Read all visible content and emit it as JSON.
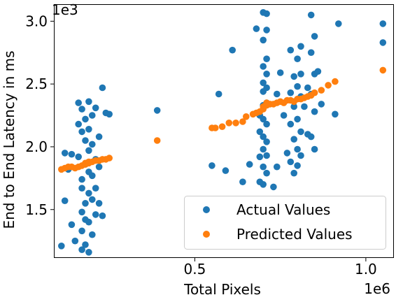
{
  "chart_data": {
    "type": "scatter",
    "xlabel": "Total Pixels",
    "ylabel": "End to End Latency in ms",
    "x_offset_label": "1e6",
    "y_offset_label": "1e3",
    "xlim": [
      0.09,
      1.08
    ],
    "ylim": [
      1.12,
      3.13
    ],
    "x_ticks": [
      0.5,
      1.0
    ],
    "x_tick_labels": [
      "0.5",
      "1.0"
    ],
    "y_ticks": [
      1.5,
      2.0,
      2.5,
      3.0
    ],
    "y_tick_labels": [
      "1.5",
      "2.0",
      "2.5",
      "3.0"
    ],
    "grid": false,
    "legend_position": "bottom-right",
    "series": [
      {
        "name": "Actual Values",
        "color": "#1f77b4",
        "points": [
          [
            0.11,
            1.21
          ],
          [
            0.12,
            1.95
          ],
          [
            0.12,
            1.57
          ],
          [
            0.13,
            1.82
          ],
          [
            0.14,
            1.94
          ],
          [
            0.14,
            1.38
          ],
          [
            0.15,
            1.25
          ],
          [
            0.16,
            2.35
          ],
          [
            0.16,
            2.18
          ],
          [
            0.16,
            1.92
          ],
          [
            0.17,
            2.3
          ],
          [
            0.17,
            2.12
          ],
          [
            0.17,
            1.74
          ],
          [
            0.17,
            1.67
          ],
          [
            0.17,
            1.48
          ],
          [
            0.17,
            1.33
          ],
          [
            0.17,
            1.18
          ],
          [
            0.18,
            2.22
          ],
          [
            0.18,
            2.05
          ],
          [
            0.18,
            1.86
          ],
          [
            0.18,
            1.55
          ],
          [
            0.18,
            1.42
          ],
          [
            0.18,
            1.22
          ],
          [
            0.19,
            2.36
          ],
          [
            0.19,
            2.14
          ],
          [
            0.19,
            1.97
          ],
          [
            0.19,
            1.8
          ],
          [
            0.19,
            1.63
          ],
          [
            0.19,
            1.4
          ],
          [
            0.19,
            1.16
          ],
          [
            0.2,
            2.25
          ],
          [
            0.2,
            2.02
          ],
          [
            0.2,
            1.77
          ],
          [
            0.2,
            1.58
          ],
          [
            0.2,
            1.3
          ],
          [
            0.21,
            2.31
          ],
          [
            0.21,
            1.9
          ],
          [
            0.21,
            1.67
          ],
          [
            0.21,
            1.46
          ],
          [
            0.22,
            2.08
          ],
          [
            0.22,
            1.84
          ],
          [
            0.22,
            1.55
          ],
          [
            0.23,
            2.47
          ],
          [
            0.23,
            1.45
          ],
          [
            0.24,
            2.27
          ],
          [
            0.25,
            2.26
          ],
          [
            0.39,
            2.29
          ],
          [
            0.55,
            1.85
          ],
          [
            0.57,
            2.42
          ],
          [
            0.59,
            1.81
          ],
          [
            0.61,
            2.77
          ],
          [
            0.64,
            1.72
          ],
          [
            0.66,
            1.86
          ],
          [
            0.68,
            2.94
          ],
          [
            0.69,
            2.25
          ],
          [
            0.69,
            2.12
          ],
          [
            0.69,
            1.92
          ],
          [
            0.69,
            1.72
          ],
          [
            0.7,
            3.07
          ],
          [
            0.7,
            2.85
          ],
          [
            0.7,
            2.64
          ],
          [
            0.7,
            2.51
          ],
          [
            0.7,
            2.44
          ],
          [
            0.7,
            2.33
          ],
          [
            0.7,
            2.22
          ],
          [
            0.7,
            2.08
          ],
          [
            0.7,
            1.98
          ],
          [
            0.7,
            1.84
          ],
          [
            0.7,
            1.7
          ],
          [
            0.71,
            3.06
          ],
          [
            0.71,
            2.93
          ],
          [
            0.71,
            2.7
          ],
          [
            0.71,
            2.58
          ],
          [
            0.71,
            2.47
          ],
          [
            0.71,
            2.35
          ],
          [
            0.71,
            2.18
          ],
          [
            0.71,
            2.04
          ],
          [
            0.71,
            1.93
          ],
          [
            0.71,
            1.79
          ],
          [
            0.73,
            1.68
          ],
          [
            0.74,
            2.42
          ],
          [
            0.74,
            1.84
          ],
          [
            0.75,
            2.59
          ],
          [
            0.76,
            2.25
          ],
          [
            0.77,
            1.95
          ],
          [
            0.78,
            2.77
          ],
          [
            0.78,
            2.43
          ],
          [
            0.78,
            2.18
          ],
          [
            0.78,
            1.88
          ],
          [
            0.79,
            2.56
          ],
          [
            0.79,
            2.32
          ],
          [
            0.79,
            2.06
          ],
          [
            0.79,
            1.79
          ],
          [
            0.8,
            2.7
          ],
          [
            0.8,
            2.48
          ],
          [
            0.8,
            2.22
          ],
          [
            0.8,
            1.98
          ],
          [
            0.8,
            1.85
          ],
          [
            0.81,
            2.8
          ],
          [
            0.81,
            2.58
          ],
          [
            0.81,
            2.4
          ],
          [
            0.81,
            2.12
          ],
          [
            0.81,
            1.93
          ],
          [
            0.82,
            2.32
          ],
          [
            0.83,
            2.47
          ],
          [
            0.83,
            2.1
          ],
          [
            0.84,
            3.05
          ],
          [
            0.84,
            2.75
          ],
          [
            0.84,
            2.42
          ],
          [
            0.84,
            2.08
          ],
          [
            0.85,
            2.88
          ],
          [
            0.85,
            2.58
          ],
          [
            0.85,
            2.28
          ],
          [
            0.85,
            1.98
          ],
          [
            0.86,
            2.6
          ],
          [
            0.87,
            2.34
          ],
          [
            0.91,
            2.26
          ],
          [
            0.92,
            2.98
          ],
          [
            1.05,
            2.98
          ],
          [
            1.05,
            2.83
          ]
        ]
      },
      {
        "name": "Predicted Values",
        "color": "#ff7f0e",
        "points": [
          [
            0.11,
            1.82
          ],
          [
            0.12,
            1.83
          ],
          [
            0.13,
            1.84
          ],
          [
            0.14,
            1.84
          ],
          [
            0.15,
            1.83
          ],
          [
            0.16,
            1.84
          ],
          [
            0.17,
            1.85
          ],
          [
            0.18,
            1.86
          ],
          [
            0.18,
            1.87
          ],
          [
            0.19,
            1.87
          ],
          [
            0.19,
            1.88
          ],
          [
            0.2,
            1.88
          ],
          [
            0.21,
            1.89
          ],
          [
            0.22,
            1.89
          ],
          [
            0.23,
            1.9
          ],
          [
            0.24,
            1.9
          ],
          [
            0.25,
            1.91
          ],
          [
            0.39,
            2.05
          ],
          [
            0.55,
            2.15
          ],
          [
            0.56,
            2.15
          ],
          [
            0.58,
            2.16
          ],
          [
            0.6,
            2.19
          ],
          [
            0.62,
            2.19
          ],
          [
            0.64,
            2.2
          ],
          [
            0.65,
            2.24
          ],
          [
            0.67,
            2.26
          ],
          [
            0.68,
            2.27
          ],
          [
            0.69,
            2.28
          ],
          [
            0.7,
            2.3
          ],
          [
            0.7,
            2.32
          ],
          [
            0.71,
            2.33
          ],
          [
            0.71,
            2.35
          ],
          [
            0.72,
            2.34
          ],
          [
            0.73,
            2.34
          ],
          [
            0.74,
            2.35
          ],
          [
            0.75,
            2.36
          ],
          [
            0.76,
            2.35
          ],
          [
            0.77,
            2.37
          ],
          [
            0.78,
            2.37
          ],
          [
            0.79,
            2.36
          ],
          [
            0.8,
            2.38
          ],
          [
            0.81,
            2.38
          ],
          [
            0.82,
            2.39
          ],
          [
            0.83,
            2.4
          ],
          [
            0.84,
            2.41
          ],
          [
            0.85,
            2.43
          ],
          [
            0.87,
            2.45
          ],
          [
            0.89,
            2.49
          ],
          [
            0.91,
            2.52
          ],
          [
            1.05,
            2.61
          ]
        ]
      }
    ]
  }
}
